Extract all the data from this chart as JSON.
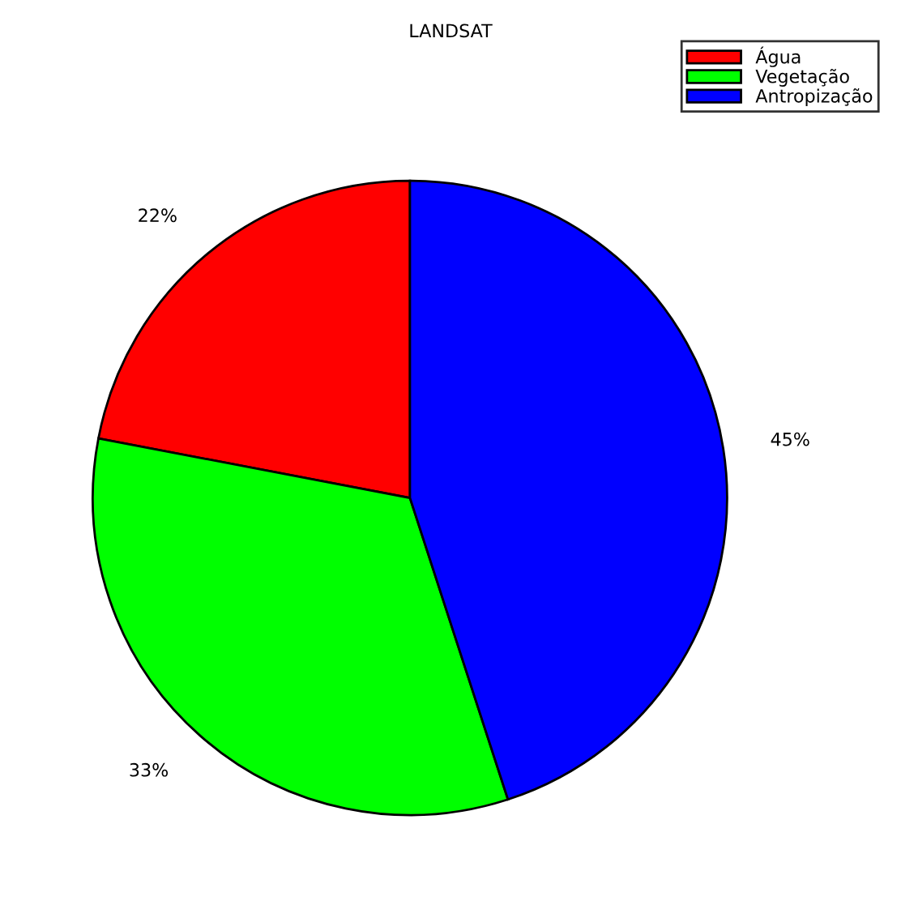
{
  "chart_data": {
    "type": "pie",
    "title": "LANDSAT",
    "categories": [
      "Água",
      "Vegetação",
      "Antropização"
    ],
    "values": [
      22,
      33,
      45
    ],
    "colors": [
      "#ff0000",
      "#00ff00",
      "#0000ff"
    ],
    "value_labels": [
      "22%",
      "33%",
      "45%"
    ],
    "legend": "top right"
  }
}
